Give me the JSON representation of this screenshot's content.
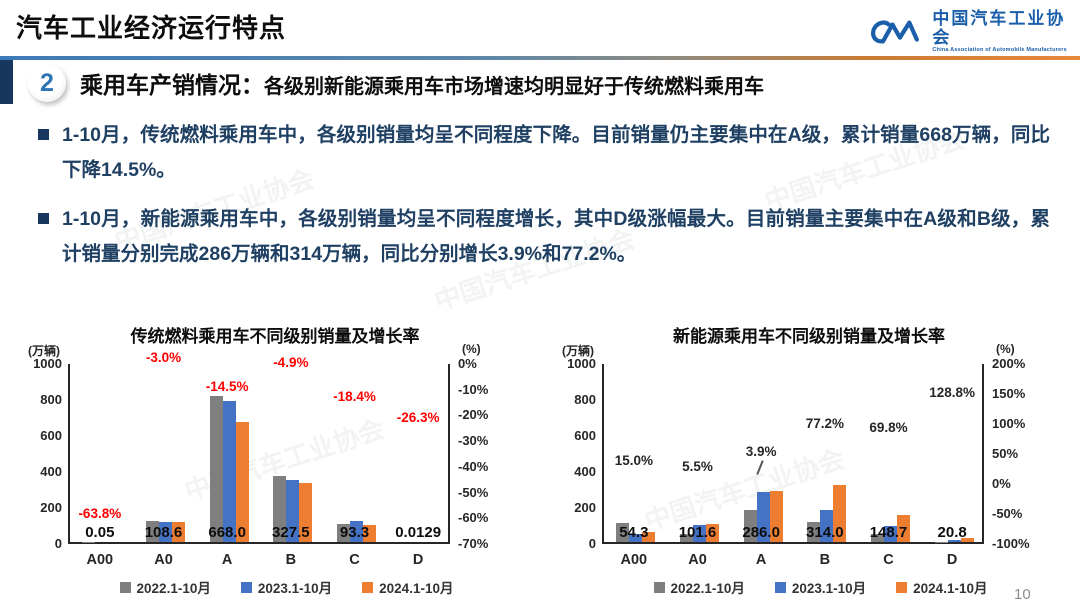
{
  "colors": {
    "accent_navy": "#17375E",
    "logo_blue": "#1B5FAA",
    "text_navy": "#1F4063",
    "number_blue": "#2E74B5",
    "series_gray": "#7F7F7F",
    "series_blue": "#4472C4",
    "series_orange": "#ED7D31",
    "growth_red": "#FF0000"
  },
  "header": {
    "title": "汽车工业经济运行特点",
    "logo": {
      "org_cn": "中国汽车工业协会",
      "org_en": "China Association of Automobile Manufacturers"
    }
  },
  "section": {
    "number": "2",
    "heading_main": "乘用车产销情况：",
    "heading_sub": "各级别新能源乘用车市场增速均明显好于传统燃料乘用车"
  },
  "bullets": [
    {
      "text": "1-10月，传统燃料乘用车中，各级别销量均呈不同程度下降。目前销量仍主要集中在A级，累计销量668万辆，同比下降14.5%。"
    },
    {
      "text": "1-10月，新能源乘用车中，各级别销量均呈不同程度增长，其中D级涨幅最大。目前销量主要集中在A级和B级，累计销量分别完成286万辆和314万辆，同比分别增长3.9%和77.2%。"
    }
  ],
  "page_number": "10",
  "watermark_text": "中国汽车工业协会",
  "chart_data": [
    {
      "type": "bar",
      "title": "传统燃料乘用车不同级别销量及增长率",
      "unit_left": "(万辆)",
      "unit_right": "(%)",
      "categories": [
        "A00",
        "A0",
        "A",
        "B",
        "C",
        "D"
      ],
      "series": [
        {
          "name": "2022.1-10月",
          "color": "#7F7F7F",
          "values": [
            0.9,
            117,
            810,
            365,
            99,
            0.05
          ]
        },
        {
          "name": "2023.1-10月",
          "color": "#4472C4",
          "values": [
            0.14,
            112,
            781,
            344,
            114,
            0.02
          ]
        },
        {
          "name": "2024.1-10月",
          "color": "#ED7D31",
          "values": [
            0.05,
            108.6,
            668.0,
            327.5,
            93.3,
            0.0129
          ]
        }
      ],
      "value_labels": [
        "0.05",
        "108.6",
        "668.0",
        "327.5",
        "93.3",
        "0.0129"
      ],
      "growth_labels": [
        "-63.8%",
        "-3.0%",
        "-14.5%",
        "-4.9%",
        "-18.4%",
        "-26.3%"
      ],
      "growth_values": [
        -63.8,
        -3.0,
        -14.5,
        -4.9,
        -18.4,
        -26.3
      ],
      "growth_color": "#FF0000",
      "ylim_left": [
        0,
        1000
      ],
      "ytick_step_left": 200,
      "ylim_right": [
        -70,
        0
      ],
      "ytick_step_right": 10,
      "grid": false,
      "legend_position": "bottom"
    },
    {
      "type": "bar",
      "title": "新能源乘用车不同级别销量及增长率",
      "unit_left": "(万辆)",
      "unit_right": "(%)",
      "categories": [
        "A00",
        "A0",
        "A",
        "B",
        "C",
        "D"
      ],
      "series": [
        {
          "name": "2022.1-10月",
          "color": "#7F7F7F",
          "values": [
            106,
            47,
            179,
            112,
            46,
            1
          ]
        },
        {
          "name": "2023.1-10月",
          "color": "#4472C4",
          "values": [
            47.2,
            96.3,
            275.3,
            177.2,
            87.6,
            9.1
          ]
        },
        {
          "name": "2024.1-10月",
          "color": "#ED7D31",
          "values": [
            54.3,
            101.6,
            286.0,
            314.0,
            148.7,
            20.8
          ]
        }
      ],
      "value_labels": [
        "54.3",
        "101.6",
        "286.0",
        "314.0",
        "148.7",
        "20.8"
      ],
      "growth_labels": [
        "15.0%",
        "5.5%",
        "3.9%",
        "77.2%",
        "69.8%",
        "128.8%"
      ],
      "growth_values": [
        15.0,
        5.5,
        3.9,
        77.2,
        69.8,
        128.8
      ],
      "growth_color": "#262626",
      "growth_label_dy": [
        0,
        0,
        -16,
        0,
        0,
        0
      ],
      "leader_index": 2,
      "ylim_left": [
        0,
        1000
      ],
      "ytick_step_left": 200,
      "ylim_right": [
        -100,
        200
      ],
      "ytick_step_right": 50,
      "grid": false,
      "legend_position": "bottom"
    }
  ]
}
